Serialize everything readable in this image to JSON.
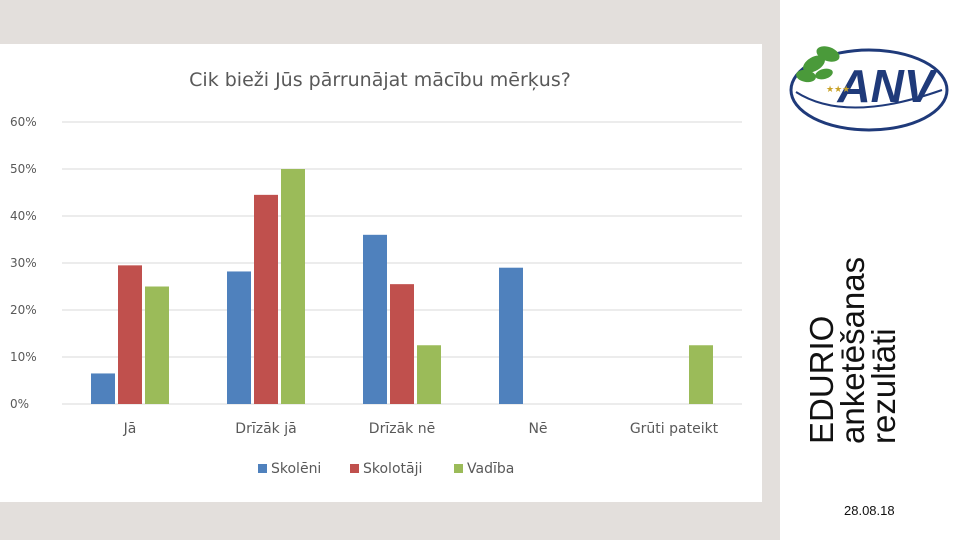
{
  "side": {
    "title_lines": [
      "EDURIO",
      "anketēšanas",
      "rezultāti"
    ],
    "date": "28.08.18",
    "logo_text": "ANV"
  },
  "chart_data": {
    "type": "bar",
    "title": "Cik bieži Jūs pārrunājat mācību mērķus?",
    "categories": [
      "Jā",
      "Drīzāk jā",
      "Drīzāk nē",
      "Nē",
      "Grūti pateikt"
    ],
    "series": [
      {
        "name": "Skolēni",
        "color": "#4f81bd",
        "values": [
          6.5,
          28.2,
          36.0,
          29.0,
          null
        ]
      },
      {
        "name": "Skolotāji",
        "color": "#c0504d",
        "values": [
          29.5,
          44.5,
          25.5,
          null,
          null
        ]
      },
      {
        "name": "Vadība",
        "color": "#9bbb59",
        "values": [
          25.0,
          50.0,
          12.5,
          null,
          12.5
        ]
      }
    ],
    "ylim": [
      0,
      60
    ],
    "yticks": [
      "0%",
      "10%",
      "20%",
      "30%",
      "40%",
      "50%",
      "60%"
    ],
    "grid": true,
    "legend": "bottom"
  }
}
